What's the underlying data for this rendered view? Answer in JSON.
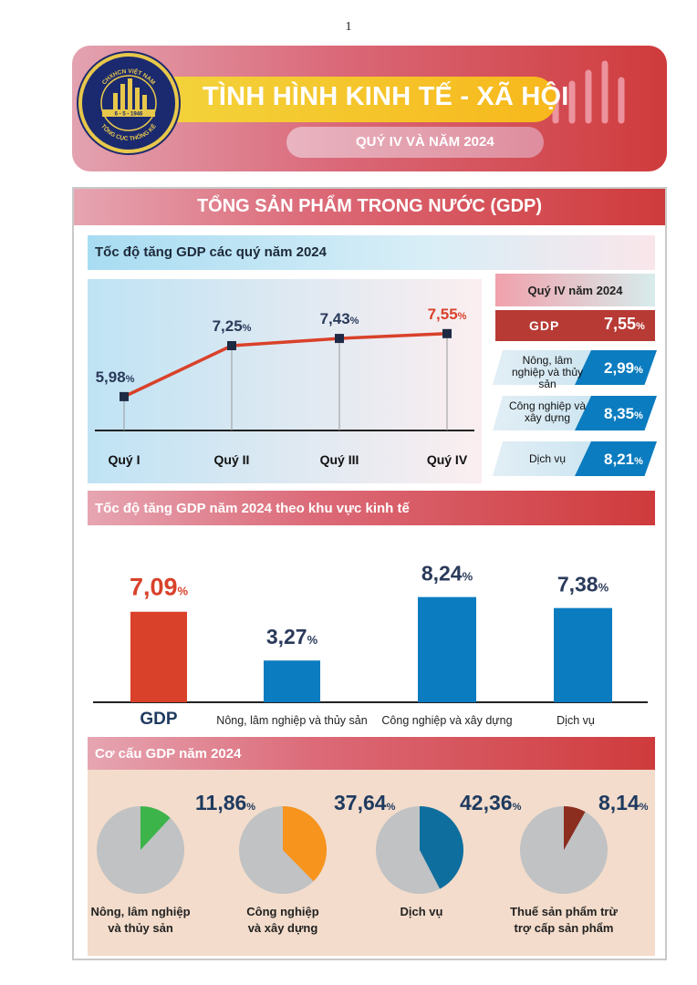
{
  "page_number": "1",
  "header": {
    "logo_text_top": "CHXHCN VIỆT NAM",
    "logo_date": "6 - 5 - 1946",
    "logo_text_bottom": "TỔNG CỤC THỐNG KÊ",
    "title": "TÌNH HÌNH KINH TẾ - XÃ HỘI",
    "subtitle": "QUÝ IV VÀ NĂM 2024"
  },
  "section_title": "TỔNG SẢN PHẨM TRONG NƯỚC (GDP)",
  "chart1_title": "Tốc độ tăng GDP các quý năm 2024",
  "chart2_title": "Tốc độ tăng GDP năm 2024 theo khu vực kinh tế",
  "chart3_title": "Cơ cấu GDP năm 2024",
  "quarter_panel": {
    "header": "Quý IV năm 2024",
    "gdp_label": "GDP",
    "gdp_value": "7,55",
    "unit": "%",
    "items": [
      {
        "label": "Nông, lâm nghiệp và thủy sản",
        "value": "2,99"
      },
      {
        "label": "Công nghiệp và xây dựng",
        "value": "8,35"
      },
      {
        "label": "Dịch vụ",
        "value": "8,21"
      }
    ]
  },
  "colors": {
    "red": "#d9412a",
    "blue": "#0b7cbf",
    "navy": "#1e3a5f",
    "green": "#3cb44a",
    "orange": "#f7941d",
    "steel": "#0e6e9e",
    "brown": "#8b2e1f",
    "pie_grey": "#c0c2c4"
  },
  "chart_data": [
    {
      "type": "line",
      "categories": [
        "Quý I",
        "Quý II",
        "Quý III",
        "Quý IV"
      ],
      "values": [
        5.98,
        7.25,
        7.43,
        7.55
      ],
      "value_labels": [
        "5,98",
        "7,25",
        "7,43",
        "7,55"
      ],
      "unit": "%"
    },
    {
      "type": "bar",
      "categories": [
        "GDP",
        "Nông, lâm nghiệp và thủy sản",
        "Công nghiệp và xây dựng",
        "Dịch vụ"
      ],
      "values": [
        7.09,
        3.27,
        8.24,
        7.38
      ],
      "value_labels": [
        "7,09",
        "3,27",
        "8,24",
        "7,38"
      ],
      "unit": "%"
    },
    {
      "type": "pie",
      "slices": [
        {
          "label": "Nông, lâm nghiệp và thủy sản",
          "value": 11.86,
          "value_label": "11,86",
          "color": "#3cb44a"
        },
        {
          "label": "Công nghiệp và xây dựng",
          "value": 37.64,
          "value_label": "37,64",
          "color": "#f7941d"
        },
        {
          "label": "Dịch vụ",
          "value": 42.36,
          "value_label": "42,36",
          "color": "#0e6e9e"
        },
        {
          "label": "Thuế sản phẩm trừ trợ cấp sản phẩm",
          "value": 8.14,
          "value_label": "8,14",
          "color": "#8b2e1f"
        }
      ],
      "unit": "%"
    }
  ]
}
